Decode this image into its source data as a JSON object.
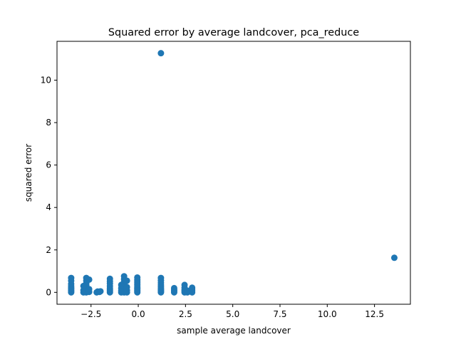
{
  "chart_data": {
    "type": "scatter",
    "title": "Squared error by average landcover, pca_reduce",
    "xlabel": "sample average landcover",
    "ylabel": "squared error",
    "xlim": [
      -4.3,
      14.4
    ],
    "ylim": [
      -0.56,
      11.83
    ],
    "xticks": [
      -2.5,
      0.0,
      2.5,
      5.0,
      7.5,
      10.0,
      12.5
    ],
    "xtick_labels": [
      "−2.5",
      "0.0",
      "2.5",
      "5.0",
      "7.5",
      "10.0",
      "12.5"
    ],
    "yticks": [
      0,
      2,
      4,
      6,
      8,
      10
    ],
    "ytick_labels": [
      "0",
      "2",
      "4",
      "6",
      "8",
      "10"
    ],
    "grid": false,
    "marker_color": "#1f77b4",
    "points": [
      {
        "x": -3.55,
        "y": 0.0
      },
      {
        "x": -3.55,
        "y": 0.05
      },
      {
        "x": -3.55,
        "y": 0.1
      },
      {
        "x": -3.55,
        "y": 0.16
      },
      {
        "x": -3.55,
        "y": 0.22
      },
      {
        "x": -3.55,
        "y": 0.3
      },
      {
        "x": -3.55,
        "y": 0.4
      },
      {
        "x": -3.55,
        "y": 0.55
      },
      {
        "x": -3.55,
        "y": 0.68
      },
      {
        "x": -2.75,
        "y": 0.0
      },
      {
        "x": -2.75,
        "y": 0.04
      },
      {
        "x": -2.75,
        "y": 0.08
      },
      {
        "x": -2.75,
        "y": 0.12
      },
      {
        "x": -2.75,
        "y": 0.18
      },
      {
        "x": -2.75,
        "y": 0.25
      },
      {
        "x": -2.75,
        "y": 0.32
      },
      {
        "x": -2.75,
        "y": 0.42
      },
      {
        "x": -2.75,
        "y": 0.55
      },
      {
        "x": -2.75,
        "y": 0.68
      },
      {
        "x": -2.9,
        "y": 0.0
      },
      {
        "x": -2.9,
        "y": 0.1
      },
      {
        "x": -2.9,
        "y": 0.3
      },
      {
        "x": -2.6,
        "y": 0.02
      },
      {
        "x": -2.6,
        "y": 0.15
      },
      {
        "x": -2.6,
        "y": 0.6
      },
      {
        "x": -2.2,
        "y": 0.0
      },
      {
        "x": -2.15,
        "y": 0.04
      },
      {
        "x": -2.05,
        "y": 0.02
      },
      {
        "x": -2.0,
        "y": 0.05
      },
      {
        "x": -1.5,
        "y": 0.0
      },
      {
        "x": -1.5,
        "y": 0.06
      },
      {
        "x": -1.5,
        "y": 0.13
      },
      {
        "x": -1.5,
        "y": 0.2
      },
      {
        "x": -1.5,
        "y": 0.3
      },
      {
        "x": -1.5,
        "y": 0.42
      },
      {
        "x": -1.5,
        "y": 0.52
      },
      {
        "x": -1.5,
        "y": 0.64
      },
      {
        "x": -0.75,
        "y": 0.0
      },
      {
        "x": -0.75,
        "y": 0.05
      },
      {
        "x": -0.75,
        "y": 0.1
      },
      {
        "x": -0.75,
        "y": 0.15
      },
      {
        "x": -0.75,
        "y": 0.22
      },
      {
        "x": -0.75,
        "y": 0.3
      },
      {
        "x": -0.75,
        "y": 0.4
      },
      {
        "x": -0.75,
        "y": 0.5
      },
      {
        "x": -0.75,
        "y": 0.62
      },
      {
        "x": -0.75,
        "y": 0.76
      },
      {
        "x": -0.9,
        "y": 0.0
      },
      {
        "x": -0.9,
        "y": 0.08
      },
      {
        "x": -0.9,
        "y": 0.2
      },
      {
        "x": -0.9,
        "y": 0.35
      },
      {
        "x": -0.6,
        "y": 0.0
      },
      {
        "x": -0.6,
        "y": 0.1
      },
      {
        "x": -0.6,
        "y": 0.25
      },
      {
        "x": -0.6,
        "y": 0.55
      },
      {
        "x": -0.05,
        "y": 0.0
      },
      {
        "x": -0.05,
        "y": 0.05
      },
      {
        "x": -0.05,
        "y": 0.1
      },
      {
        "x": -0.05,
        "y": 0.16
      },
      {
        "x": -0.05,
        "y": 0.22
      },
      {
        "x": -0.05,
        "y": 0.3
      },
      {
        "x": -0.05,
        "y": 0.38
      },
      {
        "x": -0.05,
        "y": 0.48
      },
      {
        "x": -0.05,
        "y": 0.58
      },
      {
        "x": -0.05,
        "y": 0.7
      },
      {
        "x": 1.2,
        "y": 0.0
      },
      {
        "x": 1.2,
        "y": 0.04
      },
      {
        "x": 1.2,
        "y": 0.09
      },
      {
        "x": 1.2,
        "y": 0.14
      },
      {
        "x": 1.2,
        "y": 0.2
      },
      {
        "x": 1.2,
        "y": 0.27
      },
      {
        "x": 1.2,
        "y": 0.35
      },
      {
        "x": 1.2,
        "y": 0.45
      },
      {
        "x": 1.2,
        "y": 0.56
      },
      {
        "x": 1.2,
        "y": 0.68
      },
      {
        "x": 1.9,
        "y": 0.0
      },
      {
        "x": 1.9,
        "y": 0.06
      },
      {
        "x": 1.9,
        "y": 0.12
      },
      {
        "x": 1.9,
        "y": 0.2
      },
      {
        "x": 2.45,
        "y": 0.0
      },
      {
        "x": 2.45,
        "y": 0.06
      },
      {
        "x": 2.45,
        "y": 0.13
      },
      {
        "x": 2.45,
        "y": 0.22
      },
      {
        "x": 2.45,
        "y": 0.35
      },
      {
        "x": 2.6,
        "y": 0.0
      },
      {
        "x": 2.6,
        "y": 0.08
      },
      {
        "x": 2.85,
        "y": 0.0
      },
      {
        "x": 2.85,
        "y": 0.05
      },
      {
        "x": 2.85,
        "y": 0.1
      },
      {
        "x": 2.85,
        "y": 0.16
      },
      {
        "x": 2.85,
        "y": 0.22
      },
      {
        "x": 1.2,
        "y": 11.27
      },
      {
        "x": 13.55,
        "y": 1.63
      }
    ]
  }
}
